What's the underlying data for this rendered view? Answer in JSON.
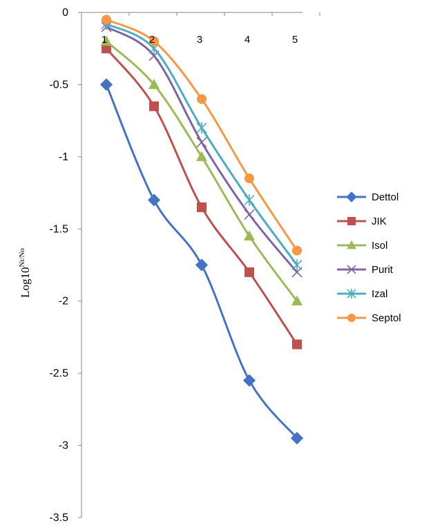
{
  "chart_data": {
    "type": "line",
    "title": "",
    "xlabel": "",
    "ylabel": "Log10",
    "ylabel_sup": "Nt/No",
    "categories": [
      "1",
      "2",
      "3",
      "4",
      "5"
    ],
    "ylim": [
      -3.5,
      0
    ],
    "yticks": [
      0,
      -0.5,
      -1,
      -1.5,
      -2,
      -2.5,
      -3,
      -3.5
    ],
    "ytick_labels": [
      "0",
      "-0.5",
      "-1",
      "-1.5",
      "-2",
      "-2.5",
      "-3",
      "-3.5"
    ],
    "grid": false,
    "legend_position": "right",
    "smooth": true,
    "series": [
      {
        "name": "Dettol",
        "color": "#4472C4",
        "marker": "diamond",
        "values": [
          -0.5,
          -1.3,
          -1.75,
          -2.55,
          -2.95
        ]
      },
      {
        "name": "JIK",
        "color": "#C0504D",
        "marker": "square",
        "values": [
          -0.25,
          -0.65,
          -1.35,
          -1.8,
          -2.3
        ]
      },
      {
        "name": "Isol",
        "color": "#9BBB59",
        "marker": "triangle",
        "values": [
          -0.2,
          -0.5,
          -1.0,
          -1.55,
          -2.0
        ]
      },
      {
        "name": "Purit",
        "color": "#8064A2",
        "marker": "x",
        "values": [
          -0.1,
          -0.3,
          -0.9,
          -1.4,
          -1.8
        ]
      },
      {
        "name": "Izal",
        "color": "#4BACC6",
        "marker": "asterisk",
        "values": [
          -0.08,
          -0.25,
          -0.8,
          -1.3,
          -1.75
        ]
      },
      {
        "name": "Septol",
        "color": "#F79646",
        "marker": "circle",
        "values": [
          -0.05,
          -0.2,
          -0.6,
          -1.15,
          -1.65
        ]
      }
    ]
  }
}
